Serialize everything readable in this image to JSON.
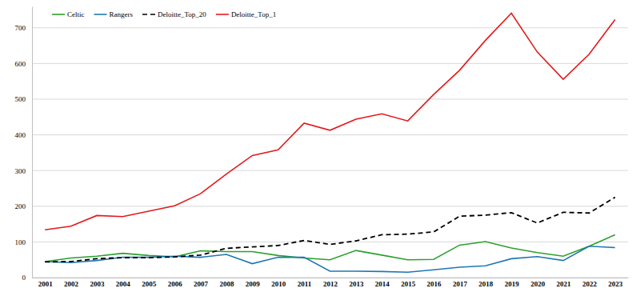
{
  "chart_data": {
    "type": "line",
    "categories": [
      "2001",
      "2002",
      "2003",
      "2004",
      "2005",
      "2006",
      "2007",
      "2008",
      "2009",
      "2010",
      "2011",
      "2012",
      "2013",
      "2014",
      "2015",
      "2016",
      "2017",
      "2018",
      "2019",
      "2020",
      "2021",
      "2022",
      "2023"
    ],
    "series": [
      {
        "name": "Celtic",
        "color": "#2ca02c",
        "line_style": "solid",
        "values": [
          45,
          55,
          60,
          68,
          62,
          58,
          75,
          73,
          73,
          62,
          55,
          50,
          76,
          63,
          50,
          51,
          91,
          101,
          83,
          70,
          60,
          88,
          120
        ]
      },
      {
        "name": "Rangers",
        "color": "#1f77b4",
        "line_style": "solid",
        "values": [
          45,
          42,
          48,
          57,
          57,
          60,
          57,
          65,
          39,
          57,
          57,
          18,
          18,
          17,
          15,
          22,
          29,
          33,
          53,
          59,
          48,
          88,
          84
        ]
      },
      {
        "name": "Deloitte_Top_20",
        "color": "#000000",
        "line_style": "dashed",
        "values": [
          44,
          45,
          53,
          56,
          56,
          58,
          63,
          82,
          86,
          90,
          104,
          93,
          103,
          120,
          122,
          128,
          172,
          175,
          182,
          153,
          183,
          181,
          225
        ]
      },
      {
        "name": "Deloitte_Top_1",
        "color": "#e31a1c",
        "line_style": "solid",
        "values": [
          134,
          144,
          174,
          171,
          186,
          201,
          235,
          290,
          342,
          358,
          433,
          413,
          444,
          459,
          439,
          513,
          581,
          665,
          741,
          632,
          556,
          626,
          723
        ]
      }
    ],
    "ylim": [
      0,
      760
    ],
    "yticks": [
      0,
      100,
      200,
      300,
      400,
      500,
      600,
      700
    ],
    "grid": true,
    "legend": "upper left"
  }
}
